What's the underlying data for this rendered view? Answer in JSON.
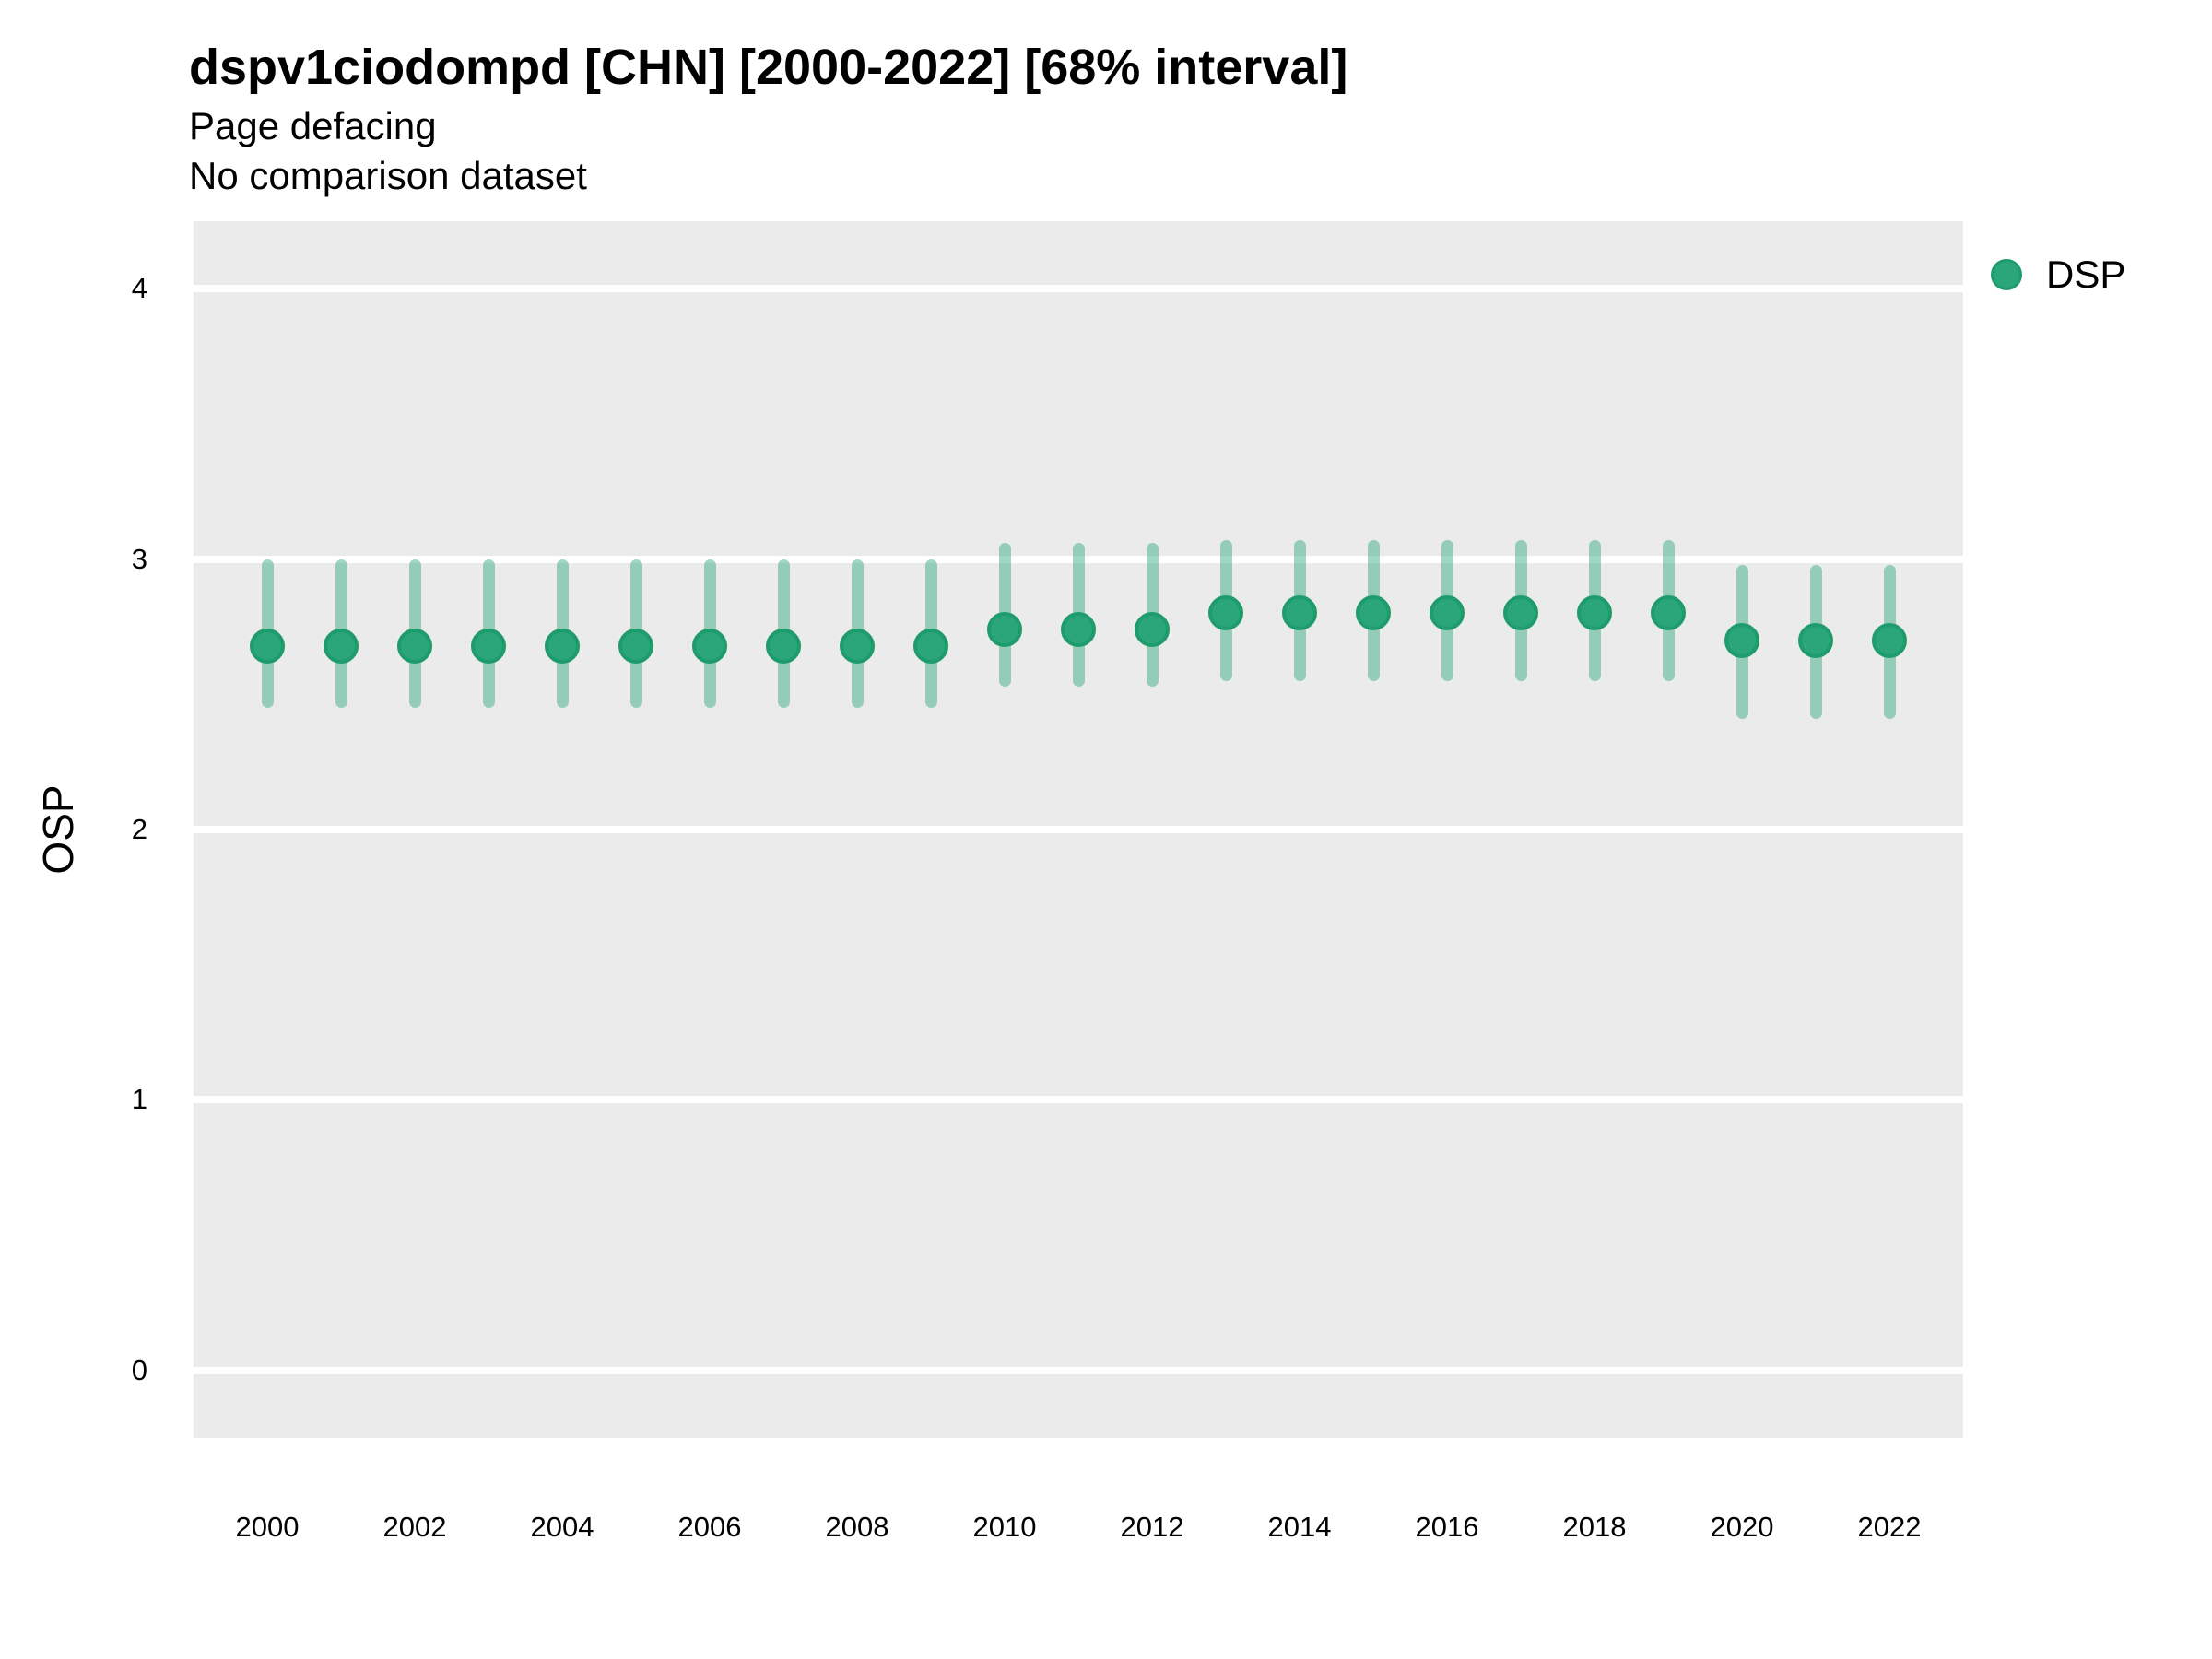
{
  "title": "dspv1ciodompd [CHN] [2000-2022] [68% interval]",
  "subtitle1": "Page defacing",
  "subtitle2": "No comparison dataset",
  "y_axis_title": "OSP",
  "legend": {
    "label": "DSP"
  },
  "colors": {
    "panel_bg": "#EBEBEB",
    "gridline": "#FFFFFF",
    "marker_fill": "#2BA67A",
    "marker_stroke": "#1F9C6B",
    "interval_bar": "rgba(43,166,122,0.45)",
    "text": "#000000"
  },
  "chart_data": {
    "type": "scatter",
    "title": "dspv1ciodompd [CHN] [2000-2022] [68% interval]",
    "subtitle": [
      "Page defacing",
      "No comparison dataset"
    ],
    "xlabel": "",
    "ylabel": "OSP",
    "interval": "68%",
    "grid": "horizontal-white-on-gray",
    "legend_position": "right",
    "ylim": [
      -0.25,
      4.25
    ],
    "yticks": [
      0,
      1,
      2,
      3,
      4
    ],
    "xticks": [
      2000,
      2002,
      2004,
      2006,
      2008,
      2010,
      2012,
      2014,
      2016,
      2018,
      2020,
      2022
    ],
    "x": [
      2000,
      2001,
      2002,
      2003,
      2004,
      2005,
      2006,
      2007,
      2008,
      2009,
      2010,
      2011,
      2012,
      2013,
      2014,
      2015,
      2016,
      2017,
      2018,
      2019,
      2020,
      2021,
      2022
    ],
    "series": [
      {
        "name": "DSP",
        "values": [
          2.68,
          2.68,
          2.68,
          2.68,
          2.68,
          2.68,
          2.68,
          2.68,
          2.68,
          2.68,
          2.74,
          2.74,
          2.74,
          2.8,
          2.8,
          2.8,
          2.8,
          2.8,
          2.8,
          2.8,
          2.7,
          2.7,
          2.7
        ],
        "interval_low": [
          2.45,
          2.45,
          2.45,
          2.45,
          2.45,
          2.45,
          2.45,
          2.45,
          2.45,
          2.45,
          2.53,
          2.53,
          2.53,
          2.55,
          2.55,
          2.55,
          2.55,
          2.55,
          2.55,
          2.55,
          2.41,
          2.41,
          2.41
        ],
        "interval_high": [
          3.0,
          3.0,
          3.0,
          3.0,
          3.0,
          3.0,
          3.0,
          3.0,
          3.0,
          3.0,
          3.06,
          3.06,
          3.06,
          3.07,
          3.07,
          3.07,
          3.07,
          3.07,
          3.07,
          3.07,
          2.98,
          2.98,
          2.98
        ]
      }
    ]
  }
}
